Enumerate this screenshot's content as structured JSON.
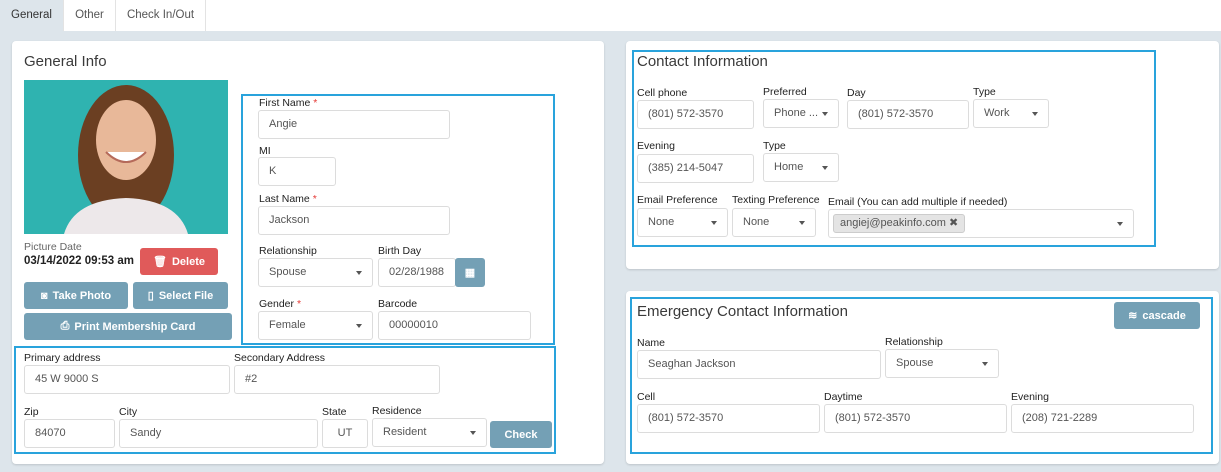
{
  "tabs": [
    {
      "label": "General"
    },
    {
      "label": "Other"
    },
    {
      "label": "Check In/Out"
    }
  ],
  "general": {
    "title": "General Info",
    "picture_date_label": "Picture Date",
    "picture_date": "03/14/2022 09:53 am",
    "delete_label": "Delete",
    "take_photo_label": "Take Photo",
    "select_file_label": "Select File",
    "print_card_label": "Print Membership Card",
    "first_name": {
      "label": "First Name",
      "value": "Angie"
    },
    "mi": {
      "label": "MI",
      "value": "K"
    },
    "last_name": {
      "label": "Last Name",
      "value": "Jackson"
    },
    "relationship": {
      "label": "Relationship",
      "value": "Spouse"
    },
    "birth_day": {
      "label": "Birth Day",
      "value": "02/28/1988"
    },
    "gender": {
      "label": "Gender",
      "value": "Female"
    },
    "barcode": {
      "label": "Barcode",
      "value": "00000010"
    },
    "primary_address": {
      "label": "Primary address",
      "value": "45 W 9000 S"
    },
    "secondary_address": {
      "label": "Secondary Address",
      "value": "#2"
    },
    "zip": {
      "label": "Zip",
      "value": "84070"
    },
    "city": {
      "label": "City",
      "value": "Sandy"
    },
    "state": {
      "label": "State",
      "value": "UT"
    },
    "residence": {
      "label": "Residence",
      "value": "Resident"
    },
    "check_label": "Check"
  },
  "contact": {
    "title": "Contact Information",
    "cell": {
      "label": "Cell phone",
      "value": "(801) 572-3570"
    },
    "preferred": {
      "label": "Preferred",
      "value": "Phone ..."
    },
    "day": {
      "label": "Day",
      "value": "(801) 572-3570"
    },
    "day_type": {
      "label": "Type",
      "value": "Work"
    },
    "evening": {
      "label": "Evening",
      "value": "(385) 214-5047"
    },
    "evening_type": {
      "label": "Type",
      "value": "Home"
    },
    "email_pref": {
      "label": "Email Preference",
      "value": "None"
    },
    "texting_pref": {
      "label": "Texting Preference",
      "value": "None"
    },
    "email": {
      "label": "Email (You can add multiple if needed)",
      "value": "angiej@peakinfo.com"
    }
  },
  "emergency": {
    "title": "Emergency Contact Information",
    "cascade_label": "cascade",
    "name": {
      "label": "Name",
      "value": "Seaghan Jackson"
    },
    "relationship": {
      "label": "Relationship",
      "value": "Spouse"
    },
    "cell": {
      "label": "Cell",
      "value": "(801) 572-3570"
    },
    "daytime": {
      "label": "Daytime",
      "value": "(801) 572-3570"
    },
    "evening": {
      "label": "Evening",
      "value": "(208) 721-2289"
    }
  },
  "colors": {
    "accent": "#29a3dc",
    "button": "#74a0b5",
    "danger": "#e05a5a",
    "background": "#dde5eb"
  }
}
